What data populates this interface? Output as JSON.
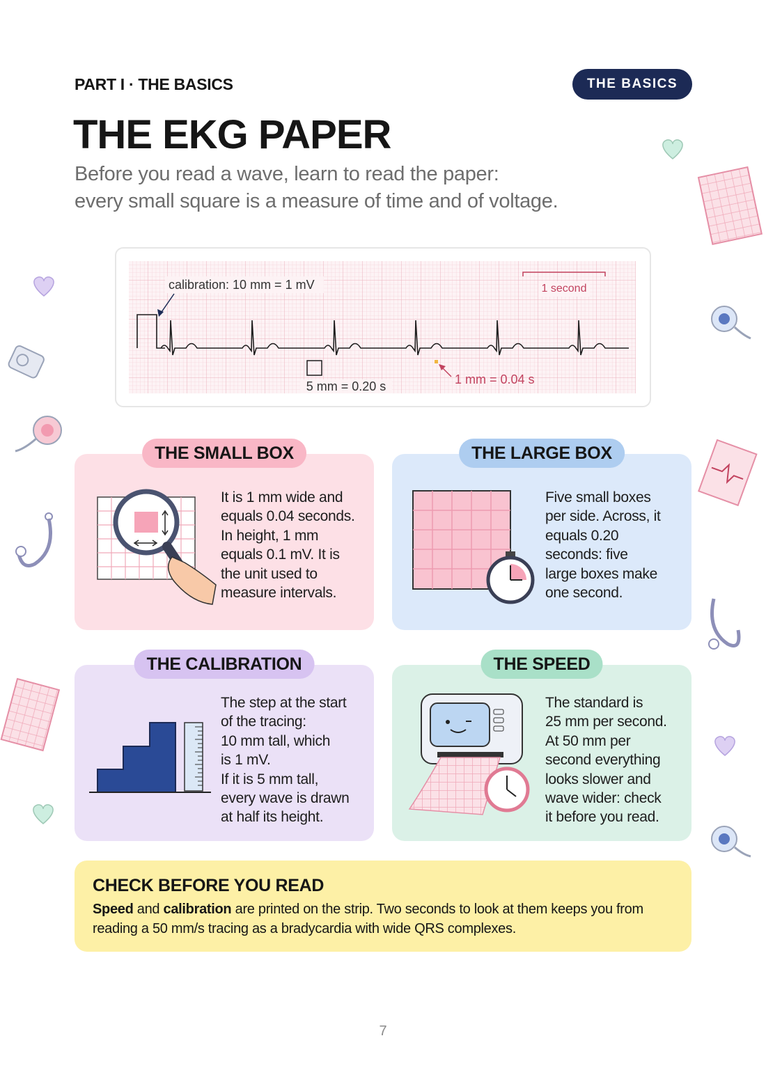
{
  "header": {
    "kicker": "PART I · THE BASICS",
    "badge": "THE BASICS",
    "title": "THE EKG PAPER",
    "subtitle_lines": [
      "Before you read a wave, learn to read the paper:",
      "every small square is a measure of time and of voltage."
    ]
  },
  "strip": {
    "calibration_label": "calibration: 10 mm = 1 mV",
    "second_label": "1 second",
    "large_box_label": "5 mm = 0.20 s",
    "small_box_label": "1 mm = 0.04 s"
  },
  "cards": [
    {
      "title": "THE SMALL BOX",
      "lines": [
        "It is 1 mm wide and",
        "equals 0.04 seconds.",
        "In height, 1 mm",
        "equals 0.1 mV. It is",
        "the unit used to",
        "measure intervals."
      ]
    },
    {
      "title": "THE LARGE BOX",
      "lines": [
        "Five small boxes",
        "per side. Across, it",
        "equals 0.20",
        "seconds: five",
        "large boxes make",
        "one second."
      ]
    },
    {
      "title": "THE CALIBRATION",
      "lines": [
        "The step at the start",
        "of the tracing:",
        "10 mm tall, which",
        "is 1 mV.",
        "If it is 5 mm tall,",
        "every wave is drawn",
        "at half its height."
      ]
    },
    {
      "title": "THE SPEED",
      "lines": [
        "The standard is",
        "25 mm per second.",
        "At 50 mm per",
        "second everything",
        "looks slower and",
        "wave wider: check",
        "it before you read."
      ]
    }
  ],
  "callout": {
    "title": "CHECK BEFORE YOU READ",
    "parts": [
      "Speed",
      " and ",
      "calibration",
      " are printed on the strip. Two seconds to look at them keeps you from reading a 50 mm/s tracing as a bradycardia with wide QRS complexes."
    ]
  },
  "page_number": "7"
}
